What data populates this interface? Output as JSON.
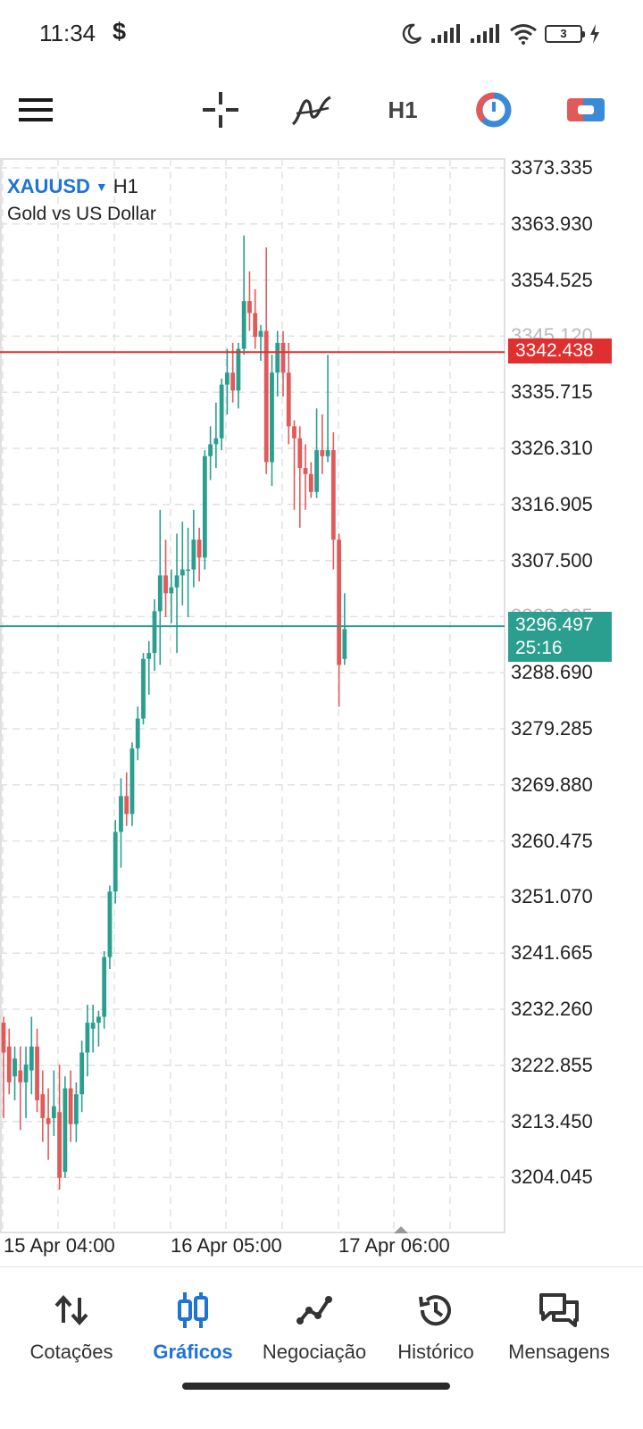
{
  "status_bar": {
    "time": "11:34",
    "dollar": "$",
    "battery": "3",
    "icons": [
      "moon-icon",
      "signal-icon",
      "signal-icon",
      "wifi-icon",
      "battery-icon",
      "charging-icon"
    ]
  },
  "toolbar": {
    "timeframe": "H1",
    "icons": [
      "menu-icon",
      "crosshair-icon",
      "indicators-icon",
      "timeframe",
      "objects-icon",
      "trade-icon"
    ]
  },
  "chart": {
    "symbol": "XAUUSD",
    "timeframe": "H1",
    "description": "Gold vs US Dollar",
    "price_axis": [
      "3373.335",
      "3363.930",
      "3354.525",
      "3345.120",
      "3335.715",
      "3326.310",
      "3316.905",
      "3307.500",
      "3298.095",
      "3288.690",
      "3279.285",
      "3269.880",
      "3260.475",
      "3251.070",
      "3241.665",
      "3232.260",
      "3222.855",
      "3213.450",
      "3204.045"
    ],
    "ask_price": "3342.438",
    "bid_price": "3296.497",
    "countdown": "25:16",
    "time_labels": [
      "15 Apr 04:00",
      "16 Apr 05:00",
      "17 Apr 06:00"
    ],
    "colors": {
      "bull": "#2a9f8f",
      "bear": "#e05a5a",
      "ask_line": "#e12f2f",
      "bid_line": "#2a9f8f",
      "grid": "#e2e2e2"
    }
  },
  "chart_data": {
    "type": "candlestick",
    "title": "XAUUSD H1",
    "ylim": [
      3204.045,
      3373.335
    ],
    "candles": [
      {
        "o": 3230.0,
        "h": 3231.0,
        "l": 3214.0,
        "c": 3225.0
      },
      {
        "o": 3226.0,
        "h": 3229.0,
        "l": 3218.0,
        "c": 3220.0
      },
      {
        "o": 3221.0,
        "h": 3226.0,
        "l": 3217.0,
        "c": 3224.0
      },
      {
        "o": 3222.0,
        "h": 3226.0,
        "l": 3212.0,
        "c": 3220.0
      },
      {
        "o": 3220.0,
        "h": 3226.0,
        "l": 3214.0,
        "c": 3223.0
      },
      {
        "o": 3222.0,
        "h": 3231.0,
        "l": 3218.0,
        "c": 3226.0
      },
      {
        "o": 3226.0,
        "h": 3229.0,
        "l": 3215.0,
        "c": 3217.0
      },
      {
        "o": 3218.0,
        "h": 3222.0,
        "l": 3210.0,
        "c": 3214.0
      },
      {
        "o": 3214.0,
        "h": 3219.0,
        "l": 3207.0,
        "c": 3213.0
      },
      {
        "o": 3214.0,
        "h": 3222.0,
        "l": 3211.0,
        "c": 3216.0
      },
      {
        "o": 3215.0,
        "h": 3223.0,
        "l": 3202.0,
        "c": 3204.0
      },
      {
        "o": 3205.0,
        "h": 3221.0,
        "l": 3204.0,
        "c": 3219.0
      },
      {
        "o": 3219.0,
        "h": 3222.0,
        "l": 3210.0,
        "c": 3213.0
      },
      {
        "o": 3213.0,
        "h": 3220.0,
        "l": 3210.0,
        "c": 3218.0
      },
      {
        "o": 3218.0,
        "h": 3227.0,
        "l": 3215.0,
        "c": 3225.0
      },
      {
        "o": 3225.0,
        "h": 3233.0,
        "l": 3221.0,
        "c": 3230.0
      },
      {
        "o": 3229.0,
        "h": 3233.0,
        "l": 3225.0,
        "c": 3230.0
      },
      {
        "o": 3230.0,
        "h": 3232.0,
        "l": 3226.0,
        "c": 3231.0
      },
      {
        "o": 3231.0,
        "h": 3242.0,
        "l": 3229.0,
        "c": 3241.0
      },
      {
        "o": 3241.0,
        "h": 3253.0,
        "l": 3239.0,
        "c": 3252.0
      },
      {
        "o": 3252.0,
        "h": 3264.0,
        "l": 3250.0,
        "c": 3262.0
      },
      {
        "o": 3262.0,
        "h": 3271.0,
        "l": 3256.0,
        "c": 3268.0
      },
      {
        "o": 3268.0,
        "h": 3272.0,
        "l": 3263.0,
        "c": 3265.0
      },
      {
        "o": 3265.0,
        "h": 3277.0,
        "l": 3263.0,
        "c": 3276.0
      },
      {
        "o": 3276.0,
        "h": 3283.0,
        "l": 3274.0,
        "c": 3281.0
      },
      {
        "o": 3281.0,
        "h": 3292.0,
        "l": 3280.0,
        "c": 3291.0
      },
      {
        "o": 3291.0,
        "h": 3294.0,
        "l": 3285.0,
        "c": 3292.0
      },
      {
        "o": 3292.0,
        "h": 3301.0,
        "l": 3289.0,
        "c": 3299.0
      },
      {
        "o": 3299.0,
        "h": 3316.0,
        "l": 3290.0,
        "c": 3305.0
      },
      {
        "o": 3305.0,
        "h": 3311.0,
        "l": 3298.0,
        "c": 3302.0
      },
      {
        "o": 3302.0,
        "h": 3306.0,
        "l": 3297.0,
        "c": 3303.0
      },
      {
        "o": 3303.0,
        "h": 3312.0,
        "l": 3292.0,
        "c": 3305.0
      },
      {
        "o": 3305.0,
        "h": 3314.0,
        "l": 3300.0,
        "c": 3306.0
      },
      {
        "o": 3306.0,
        "h": 3313.0,
        "l": 3298.0,
        "c": 3306.0
      },
      {
        "o": 3306.0,
        "h": 3316.0,
        "l": 3303.0,
        "c": 3311.0
      },
      {
        "o": 3311.0,
        "h": 3313.0,
        "l": 3304.0,
        "c": 3308.0
      },
      {
        "o": 3308.0,
        "h": 3326.0,
        "l": 3306.0,
        "c": 3325.0
      },
      {
        "o": 3325.0,
        "h": 3330.0,
        "l": 3321.0,
        "c": 3327.0
      },
      {
        "o": 3327.0,
        "h": 3334.0,
        "l": 3323.0,
        "c": 3328.0
      },
      {
        "o": 3328.0,
        "h": 3338.0,
        "l": 3326.0,
        "c": 3337.0
      },
      {
        "o": 3337.0,
        "h": 3343.0,
        "l": 3332.0,
        "c": 3339.0
      },
      {
        "o": 3339.0,
        "h": 3344.0,
        "l": 3334.0,
        "c": 3336.0
      },
      {
        "o": 3336.0,
        "h": 3344.0,
        "l": 3333.0,
        "c": 3343.0
      },
      {
        "o": 3343.0,
        "h": 3362.0,
        "l": 3342.0,
        "c": 3351.0
      },
      {
        "o": 3351.0,
        "h": 3356.0,
        "l": 3346.0,
        "c": 3349.0
      },
      {
        "o": 3349.0,
        "h": 3353.0,
        "l": 3343.0,
        "c": 3345.0
      },
      {
        "o": 3345.0,
        "h": 3347.0,
        "l": 3341.0,
        "c": 3346.0
      },
      {
        "o": 3346.0,
        "h": 3360.0,
        "l": 3322.0,
        "c": 3324.0
      },
      {
        "o": 3324.0,
        "h": 3342.0,
        "l": 3320.0,
        "c": 3339.0
      },
      {
        "o": 3339.0,
        "h": 3346.0,
        "l": 3335.0,
        "c": 3344.0
      },
      {
        "o": 3344.0,
        "h": 3346.0,
        "l": 3335.0,
        "c": 3339.0
      },
      {
        "o": 3339.0,
        "h": 3344.0,
        "l": 3327.0,
        "c": 3330.0
      },
      {
        "o": 3330.0,
        "h": 3331.0,
        "l": 3316.0,
        "c": 3328.0
      },
      {
        "o": 3328.0,
        "h": 3330.0,
        "l": 3313.0,
        "c": 3323.0
      },
      {
        "o": 3323.0,
        "h": 3327.0,
        "l": 3316.0,
        "c": 3322.0
      },
      {
        "o": 3322.0,
        "h": 3324.0,
        "l": 3318.0,
        "c": 3319.0
      },
      {
        "o": 3319.0,
        "h": 3333.0,
        "l": 3318.0,
        "c": 3326.0
      },
      {
        "o": 3326.0,
        "h": 3332.0,
        "l": 3322.0,
        "c": 3325.0
      },
      {
        "o": 3325.0,
        "h": 3342.0,
        "l": 3324.0,
        "c": 3326.0
      },
      {
        "o": 3326.0,
        "h": 3329.0,
        "l": 3306.0,
        "c": 3311.0
      },
      {
        "o": 3311.0,
        "h": 3312.0,
        "l": 3283.0,
        "c": 3290.0
      },
      {
        "o": 3291.0,
        "h": 3302.0,
        "l": 3290.0,
        "c": 3296.0
      }
    ]
  },
  "bottom_nav": {
    "items": [
      {
        "label": "Cotações",
        "icon": "quotes-icon"
      },
      {
        "label": "Gráficos",
        "icon": "charts-icon"
      },
      {
        "label": "Negociação",
        "icon": "trade-icon"
      },
      {
        "label": "Histórico",
        "icon": "history-icon"
      },
      {
        "label": "Mensagens",
        "icon": "messages-icon"
      }
    ],
    "active_index": 1
  }
}
